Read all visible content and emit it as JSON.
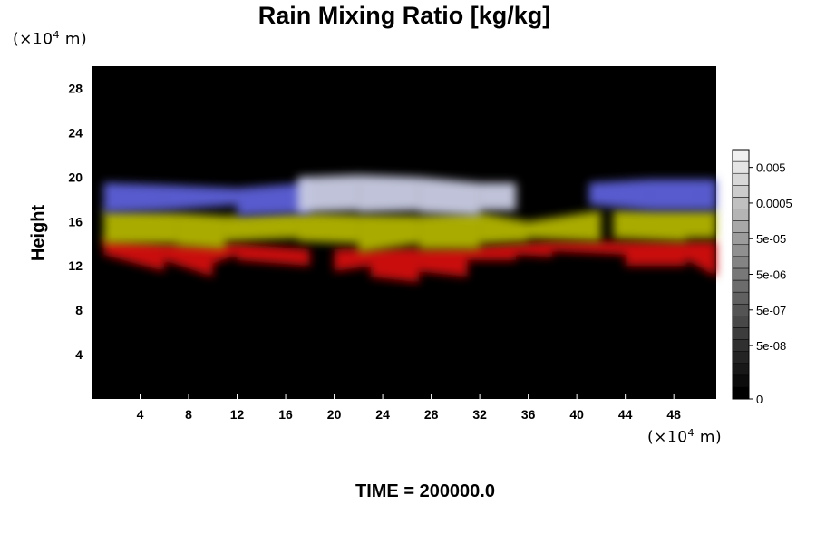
{
  "chart_data": {
    "type": "heatmap",
    "title": "Rain Mixing Ratio [kg/kg]",
    "ylabel": "Height",
    "x_unit": {
      "prefix": "(×10",
      "exp": "4",
      "suffix": " m)"
    },
    "y_unit": {
      "prefix": "(×10",
      "exp": "4",
      "suffix": " m)"
    },
    "xlim": [
      0,
      51.5
    ],
    "ylim": [
      0,
      30
    ],
    "x_ticks": [
      4,
      8,
      12,
      16,
      20,
      24,
      28,
      32,
      36,
      40,
      44,
      48
    ],
    "y_ticks": [
      4,
      8,
      12,
      16,
      20,
      24,
      28
    ],
    "background_color": "#000000",
    "colorbar": {
      "levels": 21,
      "labels": [
        {
          "text": "0.005",
          "level": 19.5
        },
        {
          "text": "0.0005",
          "level": 16.5
        },
        {
          "text": "5e-05",
          "level": 13.5
        },
        {
          "text": "5e-06",
          "level": 10.5
        },
        {
          "text": "5e-07",
          "level": 7.5
        },
        {
          "text": "5e-08",
          "level": 4.5
        },
        {
          "text": "0",
          "level": 0
        }
      ]
    },
    "layers": [
      {
        "color": "#d40a0a",
        "cells": [
          [
            1,
            14.5,
            13,
            11.5
          ],
          [
            6,
            14,
            12.5,
            11.0
          ],
          [
            10,
            14,
            12.2,
            13.0
          ],
          [
            12,
            14,
            12.5,
            12.0
          ],
          [
            20,
            13.5,
            11.5,
            12.0
          ],
          [
            23,
            13.6,
            11.0,
            10.5
          ],
          [
            27,
            13.6,
            11.5,
            11.0
          ],
          [
            31,
            13.7,
            12.5,
            12.5
          ],
          [
            35,
            14,
            13.0,
            12.8
          ],
          [
            38,
            14.2,
            13.3,
            13.0
          ],
          [
            44,
            14.2,
            12.0,
            12.0
          ],
          [
            49,
            14.2,
            12.6,
            11.0
          ]
        ]
      },
      {
        "color": "#b2b400",
        "cells": [
          [
            1,
            17.0,
            14.0,
            14.0
          ],
          [
            7,
            16.8,
            13.8,
            13.5
          ],
          [
            11,
            16.5,
            14.2,
            14.5
          ],
          [
            17,
            16.8,
            14.2,
            14.0
          ],
          [
            22,
            16.6,
            13.2,
            14.0
          ],
          [
            27,
            16.5,
            13.5,
            13.5
          ],
          [
            32,
            16.8,
            14.0,
            14.2
          ],
          [
            36,
            16.0,
            14.5,
            14.2
          ],
          [
            43,
            17.0,
            14.5,
            14.2
          ],
          [
            49,
            17.0,
            14.5,
            14.5
          ]
        ]
      },
      {
        "color": "#5c5fd8",
        "cells": [
          [
            1,
            19.5,
            16.8,
            17.0
          ],
          [
            6,
            19.3,
            17.0,
            17.5
          ],
          [
            12,
            19.0,
            16.5,
            16.8
          ],
          [
            41,
            19.5,
            17.5,
            17.0
          ],
          [
            46,
            19.8,
            17.0,
            17.0
          ],
          [
            50,
            19.8,
            17.0,
            17.0
          ]
        ]
      },
      {
        "color": "#c9cce4",
        "cells": [
          [
            17,
            20.0,
            16.8,
            17.0
          ],
          [
            22,
            20.2,
            16.8,
            17.0
          ],
          [
            27,
            20.0,
            16.8,
            16.5
          ],
          [
            32,
            19.5,
            17.0,
            17.0
          ]
        ]
      }
    ],
    "time_label": "TIME = 200000.0"
  }
}
